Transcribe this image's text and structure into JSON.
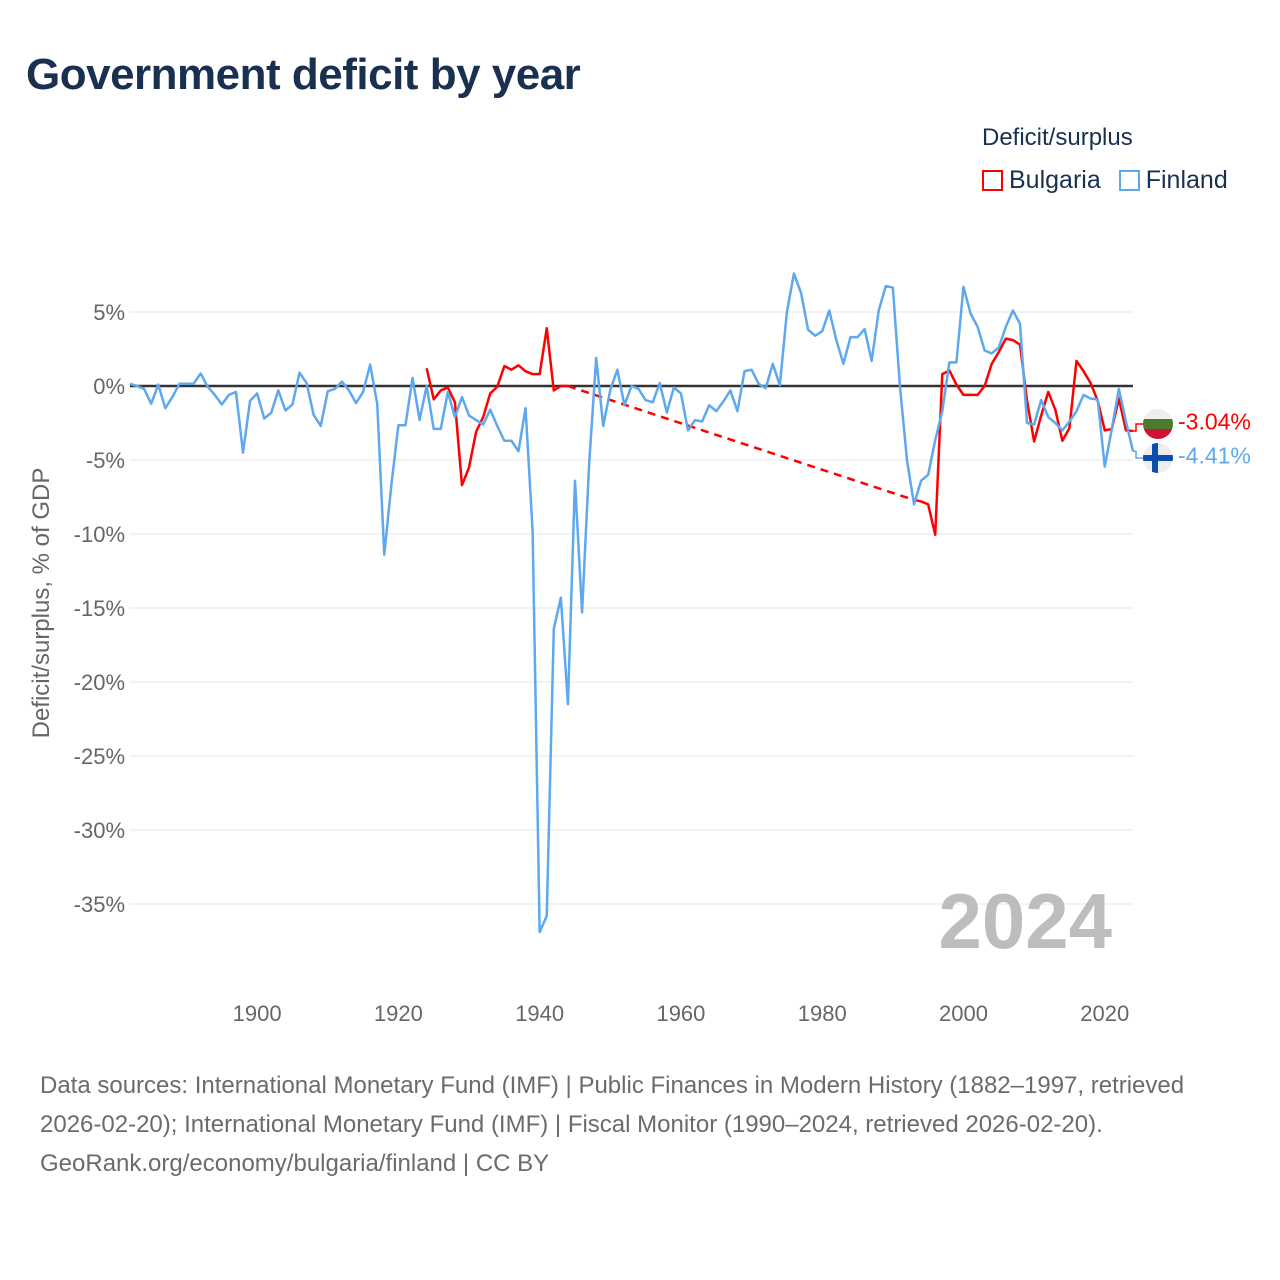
{
  "title": "Government deficit by year",
  "legend": {
    "title": "Deficit/surplus",
    "items": [
      {
        "label": "Bulgaria",
        "color": "#ff0000"
      },
      {
        "label": "Finland",
        "color": "#5ea8ee"
      }
    ]
  },
  "big_year": "2024",
  "end_labels": {
    "bulgaria": {
      "text": "-3.04%",
      "flag_icon": "bulgaria-flag"
    },
    "finland": {
      "text": "-4.41%",
      "flag_icon": "finland-flag"
    }
  },
  "footer": {
    "sources": "Data sources: International Monetary Fund (IMF) | Public Finances in Modern History (1882–1997, retrieved 2026-02-20); International Monetary Fund (IMF) | Fiscal Monitor (1990–2024, retrieved 2026-02-20).",
    "credit": "GeoRank.org/economy/bulgaria/finland | CC BY"
  },
  "chart_data": {
    "type": "line",
    "title": "Government deficit by year",
    "xlabel": "",
    "ylabel": "Deficit/surplus, % of GDP",
    "xlim": [
      1882,
      2024
    ],
    "ylim": [
      -38,
      9
    ],
    "x_ticks": [
      1900,
      1920,
      1940,
      1960,
      1980,
      2000,
      2020
    ],
    "x_tick_labels": [
      "1900",
      "1920",
      "1940",
      "1960",
      "1980",
      "2000",
      "2020"
    ],
    "y_ticks": [
      5,
      0,
      -5,
      -10,
      -15,
      -20,
      -25,
      -30,
      -35
    ],
    "y_tick_labels": [
      "5%",
      "0%",
      "-5%",
      "-10%",
      "-15%",
      "-20%",
      "-25%",
      "-30%",
      "-35%"
    ],
    "grid": true,
    "legend_position": "top-right",
    "series": [
      {
        "name": "Bulgaria",
        "color": "#ff0000",
        "gap_style": "dashed",
        "points": [
          [
            1924,
            1.2
          ],
          [
            1925,
            -0.9
          ],
          [
            1926,
            -0.3
          ],
          [
            1927,
            -0.1
          ],
          [
            1928,
            -1.1
          ],
          [
            1929,
            -6.7
          ],
          [
            1930,
            -5.5
          ],
          [
            1931,
            -3.1
          ],
          [
            1932,
            -2.1
          ],
          [
            1933,
            -0.5
          ],
          [
            1934,
            -0.05
          ],
          [
            1935,
            1.35
          ],
          [
            1936,
            1.1
          ],
          [
            1937,
            1.4
          ],
          [
            1938,
            1.0
          ],
          [
            1939,
            0.8
          ],
          [
            1940,
            0.8
          ],
          [
            1941,
            3.9
          ],
          [
            1942,
            -0.3
          ],
          [
            1943,
            0
          ],
          [
            1944,
            0
          ],
          [
            1993,
            -7.7
          ],
          [
            1994,
            -7.8
          ],
          [
            1995,
            -8.0
          ],
          [
            1996,
            -10.05
          ],
          [
            1997,
            0.8
          ],
          [
            1998,
            1.05
          ],
          [
            1999,
            0.1
          ],
          [
            2000,
            -0.6
          ],
          [
            2001,
            -0.6
          ],
          [
            2002,
            -0.6
          ],
          [
            2003,
            0
          ],
          [
            2004,
            1.5
          ],
          [
            2005,
            2.3
          ],
          [
            2006,
            3.2
          ],
          [
            2007,
            3.1
          ],
          [
            2008,
            2.8
          ],
          [
            2009,
            -1.0
          ],
          [
            2010,
            -3.75
          ],
          [
            2011,
            -2.0
          ],
          [
            2012,
            -0.4
          ],
          [
            2013,
            -1.6
          ],
          [
            2014,
            -3.7
          ],
          [
            2015,
            -2.85
          ],
          [
            2016,
            1.7
          ],
          [
            2017,
            1.0
          ],
          [
            2018,
            0.2
          ],
          [
            2019,
            -1.0
          ],
          [
            2020,
            -3.0
          ],
          [
            2021,
            -2.9
          ],
          [
            2022,
            -0.85
          ],
          [
            2023,
            -3.0
          ],
          [
            2024,
            -3.04
          ]
        ]
      },
      {
        "name": "Finland",
        "color": "#5ea8ee",
        "x_start": 1882,
        "values": [
          0.15,
          0,
          -0.2,
          -1.2,
          0.1,
          -1.5,
          -0.75,
          0.15,
          0.15,
          0.15,
          0.85,
          -0.05,
          -0.6,
          -1.25,
          -0.6,
          -0.4,
          -4.5,
          -1.0,
          -0.5,
          -2.2,
          -1.8,
          -0.3,
          -1.65,
          -1.25,
          0.9,
          0.2,
          -1.95,
          -2.7,
          -0.35,
          -0.2,
          0.3,
          -0.3,
          -1.15,
          -0.4,
          1.45,
          -1.2,
          -11.4,
          -6.7,
          -2.65,
          -2.65,
          0.55,
          -2.3,
          0,
          -2.9,
          -2.9,
          -0.4,
          -2.1,
          -0.75,
          -2.0,
          -2.3,
          -2.6,
          -1.6,
          -2.7,
          -3.7,
          -3.7,
          -4.4,
          -1.5,
          -9.8,
          -36.9,
          -35.8,
          -16.4,
          -14.3,
          -21.5,
          -6.4,
          -15.3,
          -5.3,
          1.9,
          -2.7,
          -0.25,
          1.1,
          -1.3,
          0,
          -0.2,
          -0.95,
          -1.1,
          0.2,
          -1.8,
          -0.1,
          -0.5,
          -3.0,
          -2.3,
          -2.4,
          -1.3,
          -1.7,
          -1.05,
          -0.3,
          -1.7,
          1.0,
          1.1,
          0.15,
          -0.15,
          1.5,
          0.05,
          5.0,
          7.6,
          6.3,
          3.8,
          3.4,
          3.7,
          5.1,
          3.1,
          1.5,
          3.3,
          3.3,
          3.85,
          1.7,
          5.1,
          6.75,
          6.65,
          0,
          -5.0,
          -8.0,
          -6.4,
          -6.0,
          -3.65,
          -1.7,
          1.6,
          1.6,
          6.7,
          4.9,
          4.0,
          2.4,
          2.2,
          2.6,
          4.0,
          5.1,
          4.2,
          -2.5,
          -2.6,
          -0.95,
          -2.1,
          -2.5,
          -3.0,
          -2.4,
          -1.7,
          -0.6,
          -0.85,
          -0.9,
          -5.45,
          -2.9,
          -0.2,
          -2.4,
          -4.41
        ]
      }
    ]
  }
}
